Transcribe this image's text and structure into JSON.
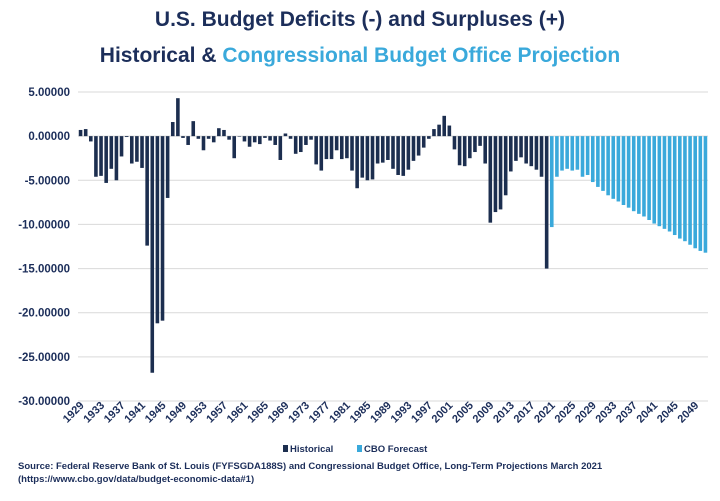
{
  "title_line1": "U.S. Budget Deficits (-) and Surpluses (+)",
  "title_line2_a": "Historical & ",
  "title_line2_b": "Congressional Budget Office Projection",
  "source_line1": "Source: Federal Reserve Bank of St. Louis (FYFSGDA188S) and Congressional Budget Office, Long-Term Projections March 2021",
  "source_line2": "(https://www.cbo.gov/data/budget-economic-data#1)",
  "colors": {
    "historical": "#1c2e4f",
    "forecast": "#3aa9db",
    "grid": "#d9d9d9"
  },
  "chart_data": {
    "type": "bar",
    "ylim": [
      -30,
      5
    ],
    "yticks": [
      5,
      0,
      -5,
      -10,
      -15,
      -20,
      -25,
      -30
    ],
    "ytick_labels": [
      "5.00000",
      "0.00000",
      "-5.00000",
      "-10.00000",
      "-15.00000",
      "-20.00000",
      "-25.00000",
      "-30.00000"
    ],
    "xtick_labels": [
      "1929",
      "1933",
      "1937",
      "1941",
      "1945",
      "1949",
      "1953",
      "1957",
      "1961",
      "1965",
      "1969",
      "1973",
      "1977",
      "1981",
      "1985",
      "1989",
      "1993",
      "1997",
      "2001",
      "2005",
      "2009",
      "2013",
      "2017",
      "2021",
      "2025",
      "2029",
      "2033",
      "2037",
      "2041",
      "2045",
      "2049"
    ],
    "grid": true,
    "legend_position": "bottom",
    "series": [
      {
        "name": "Historical",
        "start_year": 1929,
        "values": [
          0.7,
          0.8,
          -0.6,
          -4.6,
          -4.5,
          -5.3,
          -3.7,
          -5.0,
          -2.3,
          -0.1,
          -3.1,
          -2.9,
          -3.6,
          -12.4,
          -26.8,
          -21.2,
          -20.9,
          -7.0,
          1.6,
          4.3,
          -0.2,
          -1.0,
          1.7,
          -0.3,
          -1.6,
          -0.3,
          -0.7,
          0.9,
          0.7,
          -0.4,
          -2.5,
          0.0,
          -0.6,
          -1.2,
          -0.7,
          -0.9,
          -0.2,
          -0.5,
          -1.0,
          -2.7,
          0.3,
          -0.3,
          -2.0,
          -1.8,
          -1.0,
          -0.4,
          -3.2,
          -3.9,
          -2.6,
          -2.6,
          -1.6,
          -2.6,
          -2.5,
          -3.9,
          -5.9,
          -4.7,
          -5.0,
          -4.9,
          -3.1,
          -3.0,
          -2.7,
          -3.7,
          -4.4,
          -4.5,
          -3.8,
          -2.8,
          -2.2,
          -1.3,
          -0.3,
          0.8,
          1.3,
          2.3,
          1.2,
          -1.5,
          -3.3,
          -3.4,
          -2.5,
          -1.8,
          -1.1,
          -3.1,
          -9.8,
          -8.6,
          -8.3,
          -6.7,
          -4.0,
          -2.8,
          -2.4,
          -3.1,
          -3.4,
          -3.8,
          -4.6,
          -15.0
        ]
      },
      {
        "name": "CBO Forecast",
        "start_year": 2021,
        "values": [
          -10.3,
          -4.6,
          -3.9,
          -3.7,
          -3.9,
          -3.8,
          -4.6,
          -4.4,
          -5.2,
          -5.75,
          -6.2,
          -6.7,
          -7.1,
          -7.4,
          -7.8,
          -8.1,
          -8.5,
          -8.8,
          -9.1,
          -9.5,
          -9.9,
          -10.2,
          -10.5,
          -10.8,
          -11.2,
          -11.6,
          -11.9,
          -12.3,
          -12.7,
          -13.0,
          -13.2
        ]
      }
    ]
  }
}
